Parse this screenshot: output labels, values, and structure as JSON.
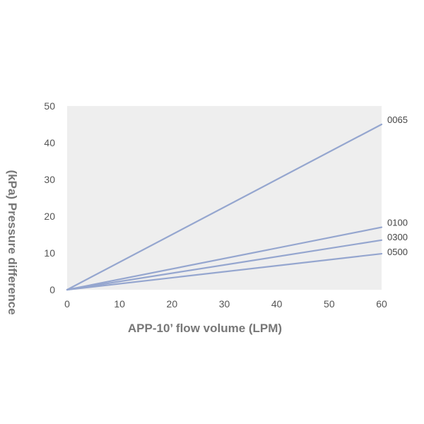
{
  "chart_data": {
    "type": "line",
    "title": "",
    "xlabel": "APP-10’ flow volume (LPM)",
    "ylabel": "(kPa) Pressure difference",
    "xlim": [
      0,
      60
    ],
    "ylim": [
      0,
      50
    ],
    "xticks": [
      "0",
      "10",
      "20",
      "30",
      "40",
      "50",
      "60"
    ],
    "yticks": [
      "0",
      "10",
      "20",
      "30",
      "40",
      "50"
    ],
    "grid": false,
    "legend": "none",
    "colors": {
      "background": "#eeeeee",
      "line": "#95a6cf"
    },
    "series": [
      {
        "name": "0065",
        "x": [
          0,
          60
        ],
        "y": [
          0,
          45
        ]
      },
      {
        "name": "0100",
        "x": [
          0,
          60
        ],
        "y": [
          0,
          17
        ]
      },
      {
        "name": "0300",
        "x": [
          0,
          60
        ],
        "y": [
          0,
          13.5
        ]
      },
      {
        "name": "0500",
        "x": [
          0,
          60
        ],
        "y": [
          0,
          9.8
        ]
      }
    ]
  }
}
